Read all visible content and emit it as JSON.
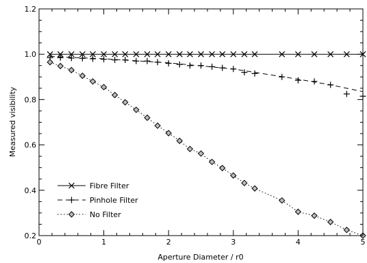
{
  "chart_data": {
    "type": "line",
    "xlabel": "Aperture Diameter / r0",
    "ylabel": "Measured visibility",
    "xlim": [
      0,
      5
    ],
    "ylim": [
      0.2,
      1.2
    ],
    "x_ticks": [
      0,
      1,
      2,
      3,
      4,
      5
    ],
    "y_ticks": [
      0.2,
      0.4,
      0.6,
      0.8,
      1.0,
      1.2
    ],
    "x_tick_labels": [
      "0",
      "1",
      "2",
      "3",
      "4",
      "5"
    ],
    "y_tick_labels": [
      "0.2",
      "0.4",
      "0.6",
      "0.8",
      "1.0",
      "1.2"
    ],
    "grid": false,
    "legend_position": "bottom-left",
    "colors": {
      "ink": "#000000",
      "no_filter_marker_fill": "#bbbbbb"
    },
    "series": [
      {
        "name": "Fibre Filter",
        "line_style": "solid",
        "marker": "x",
        "points": [
          [
            0.17,
            1.0
          ],
          [
            0.33,
            1.0
          ],
          [
            0.5,
            1.0
          ],
          [
            0.67,
            1.0
          ],
          [
            0.83,
            1.0
          ],
          [
            1.0,
            1.0
          ],
          [
            1.17,
            1.0
          ],
          [
            1.33,
            1.0
          ],
          [
            1.5,
            1.0
          ],
          [
            1.67,
            1.0
          ],
          [
            1.83,
            1.0
          ],
          [
            2.0,
            1.0
          ],
          [
            2.17,
            1.0
          ],
          [
            2.33,
            1.0
          ],
          [
            2.5,
            1.0
          ],
          [
            2.67,
            1.0
          ],
          [
            2.83,
            1.0
          ],
          [
            3.0,
            1.0
          ],
          [
            3.17,
            1.0
          ],
          [
            3.33,
            1.0
          ],
          [
            3.75,
            1.0
          ],
          [
            4.0,
            1.0
          ],
          [
            4.25,
            1.0
          ],
          [
            4.5,
            1.0
          ],
          [
            4.75,
            1.0
          ],
          [
            5.0,
            1.0
          ]
        ],
        "line": [
          [
            0.17,
            1.0
          ],
          [
            5.0,
            1.0
          ]
        ]
      },
      {
        "name": "Pinhole Filter",
        "line_style": "dashed",
        "marker": "+",
        "points": [
          [
            0.17,
            0.985
          ],
          [
            0.33,
            0.985
          ],
          [
            0.5,
            0.983
          ],
          [
            0.67,
            0.982
          ],
          [
            0.83,
            0.98
          ],
          [
            1.0,
            0.978
          ],
          [
            1.17,
            0.975
          ],
          [
            1.33,
            0.975
          ],
          [
            1.5,
            0.97
          ],
          [
            1.67,
            0.97
          ],
          [
            1.83,
            0.965
          ],
          [
            2.0,
            0.96
          ],
          [
            2.17,
            0.955
          ],
          [
            2.33,
            0.95
          ],
          [
            2.5,
            0.95
          ],
          [
            2.67,
            0.945
          ],
          [
            2.83,
            0.94
          ],
          [
            3.0,
            0.935
          ],
          [
            3.17,
            0.92
          ],
          [
            3.33,
            0.915
          ],
          [
            3.75,
            0.9
          ],
          [
            4.0,
            0.885
          ],
          [
            4.25,
            0.88
          ],
          [
            4.5,
            0.865
          ],
          [
            4.75,
            0.825
          ],
          [
            5.0,
            0.815
          ]
        ],
        "line": [
          [
            0.17,
            0.99
          ],
          [
            1.0,
            0.98
          ],
          [
            2.0,
            0.962
          ],
          [
            3.0,
            0.935
          ],
          [
            4.0,
            0.89
          ],
          [
            4.5,
            0.865
          ],
          [
            5.0,
            0.835
          ]
        ]
      },
      {
        "name": "No Filter",
        "line_style": "dotted",
        "marker": "diamond",
        "points": [
          [
            0.17,
            0.965
          ],
          [
            0.33,
            0.948
          ],
          [
            0.5,
            0.93
          ],
          [
            0.67,
            0.905
          ],
          [
            0.83,
            0.88
          ],
          [
            1.0,
            0.855
          ],
          [
            1.17,
            0.82
          ],
          [
            1.33,
            0.788
          ],
          [
            1.5,
            0.755
          ],
          [
            1.67,
            0.72
          ],
          [
            1.83,
            0.685
          ],
          [
            2.0,
            0.652
          ],
          [
            2.17,
            0.618
          ],
          [
            2.33,
            0.582
          ],
          [
            2.5,
            0.562
          ],
          [
            2.67,
            0.525
          ],
          [
            2.83,
            0.498
          ],
          [
            3.0,
            0.465
          ],
          [
            3.17,
            0.432
          ],
          [
            3.33,
            0.408
          ],
          [
            3.75,
            0.355
          ],
          [
            4.0,
            0.305
          ],
          [
            4.25,
            0.288
          ],
          [
            4.5,
            0.26
          ],
          [
            4.75,
            0.225
          ],
          [
            5.0,
            0.2
          ]
        ]
      }
    ]
  }
}
